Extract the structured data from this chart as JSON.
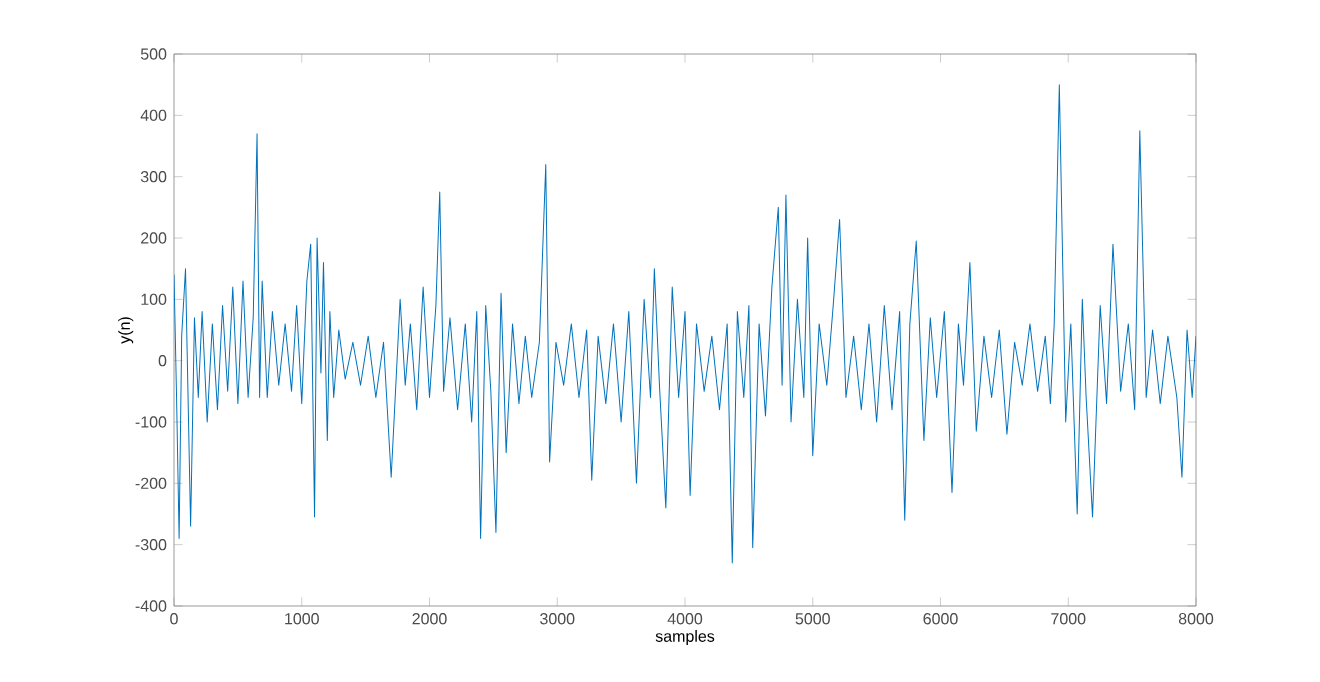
{
  "chart_data": {
    "type": "line",
    "xlabel": "samples",
    "ylabel": "y(n)",
    "xlim": [
      0,
      8000
    ],
    "ylim": [
      -400,
      500
    ],
    "xticks": [
      0,
      1000,
      2000,
      3000,
      4000,
      5000,
      6000,
      7000,
      8000
    ],
    "yticks": [
      -400,
      -300,
      -200,
      -100,
      0,
      100,
      200,
      300,
      400,
      500
    ],
    "grid": false,
    "series": [
      {
        "color": "#0072bd",
        "x": [
          0,
          20,
          40,
          60,
          90,
          130,
          160,
          190,
          220,
          260,
          300,
          340,
          380,
          420,
          460,
          500,
          540,
          580,
          620,
          650,
          670,
          690,
          730,
          770,
          820,
          870,
          920,
          960,
          1000,
          1040,
          1070,
          1100,
          1120,
          1150,
          1170,
          1200,
          1220,
          1250,
          1290,
          1340,
          1400,
          1460,
          1520,
          1580,
          1640,
          1700,
          1770,
          1810,
          1850,
          1900,
          1950,
          2000,
          2050,
          2080,
          2110,
          2160,
          2220,
          2280,
          2330,
          2370,
          2400,
          2440,
          2480,
          2520,
          2560,
          2600,
          2650,
          2700,
          2750,
          2800,
          2860,
          2910,
          2940,
          2990,
          3050,
          3110,
          3170,
          3230,
          3270,
          3320,
          3380,
          3440,
          3500,
          3560,
          3620,
          3680,
          3730,
          3760,
          3800,
          3850,
          3900,
          3950,
          4000,
          4040,
          4090,
          4150,
          4210,
          4270,
          4330,
          4370,
          4410,
          4460,
          4500,
          4530,
          4580,
          4630,
          4680,
          4730,
          4760,
          4790,
          4830,
          4880,
          4930,
          4960,
          5000,
          5050,
          5110,
          5160,
          5210,
          5260,
          5320,
          5380,
          5440,
          5500,
          5560,
          5620,
          5680,
          5720,
          5760,
          5810,
          5870,
          5920,
          5970,
          6030,
          6090,
          6140,
          6180,
          6230,
          6280,
          6340,
          6400,
          6460,
          6520,
          6580,
          6640,
          6700,
          6760,
          6820,
          6860,
          6890,
          6930,
          6980,
          7020,
          7070,
          7110,
          7140,
          7190,
          7250,
          7300,
          7350,
          7410,
          7470,
          7520,
          7560,
          7610,
          7660,
          7720,
          7780,
          7850,
          7890,
          7930,
          7970,
          8000
        ],
        "values": [
          140,
          -60,
          -290,
          40,
          150,
          -270,
          70,
          -60,
          80,
          -100,
          60,
          -80,
          90,
          -50,
          120,
          -70,
          130,
          -60,
          70,
          370,
          -60,
          130,
          -60,
          80,
          -40,
          60,
          -50,
          90,
          -70,
          130,
          190,
          -255,
          200,
          -20,
          160,
          -130,
          80,
          -60,
          50,
          -30,
          30,
          -40,
          40,
          -60,
          30,
          -190,
          100,
          -40,
          60,
          -80,
          120,
          -60,
          90,
          275,
          -50,
          70,
          -80,
          60,
          -100,
          80,
          -290,
          90,
          -50,
          -280,
          110,
          -150,
          60,
          -70,
          40,
          -60,
          30,
          320,
          -165,
          30,
          -40,
          60,
          -60,
          50,
          -195,
          40,
          -70,
          60,
          -100,
          80,
          -200,
          100,
          -60,
          150,
          -40,
          -240,
          120,
          -60,
          80,
          -220,
          60,
          -50,
          40,
          -80,
          60,
          -330,
          80,
          -60,
          90,
          -305,
          60,
          -90,
          120,
          250,
          -40,
          270,
          -100,
          100,
          -60,
          200,
          -155,
          60,
          -40,
          90,
          230,
          -60,
          40,
          -80,
          60,
          -100,
          90,
          -80,
          80,
          -260,
          60,
          195,
          -130,
          70,
          -60,
          80,
          -215,
          60,
          -40,
          160,
          -115,
          40,
          -60,
          50,
          -120,
          30,
          -40,
          60,
          -50,
          40,
          -70,
          60,
          450,
          -100,
          60,
          -250,
          100,
          -60,
          -255,
          90,
          -70,
          190,
          -50,
          60,
          -80,
          375,
          -60,
          50,
          -70,
          40,
          -60,
          -190,
          50,
          -60,
          40
        ]
      }
    ]
  }
}
